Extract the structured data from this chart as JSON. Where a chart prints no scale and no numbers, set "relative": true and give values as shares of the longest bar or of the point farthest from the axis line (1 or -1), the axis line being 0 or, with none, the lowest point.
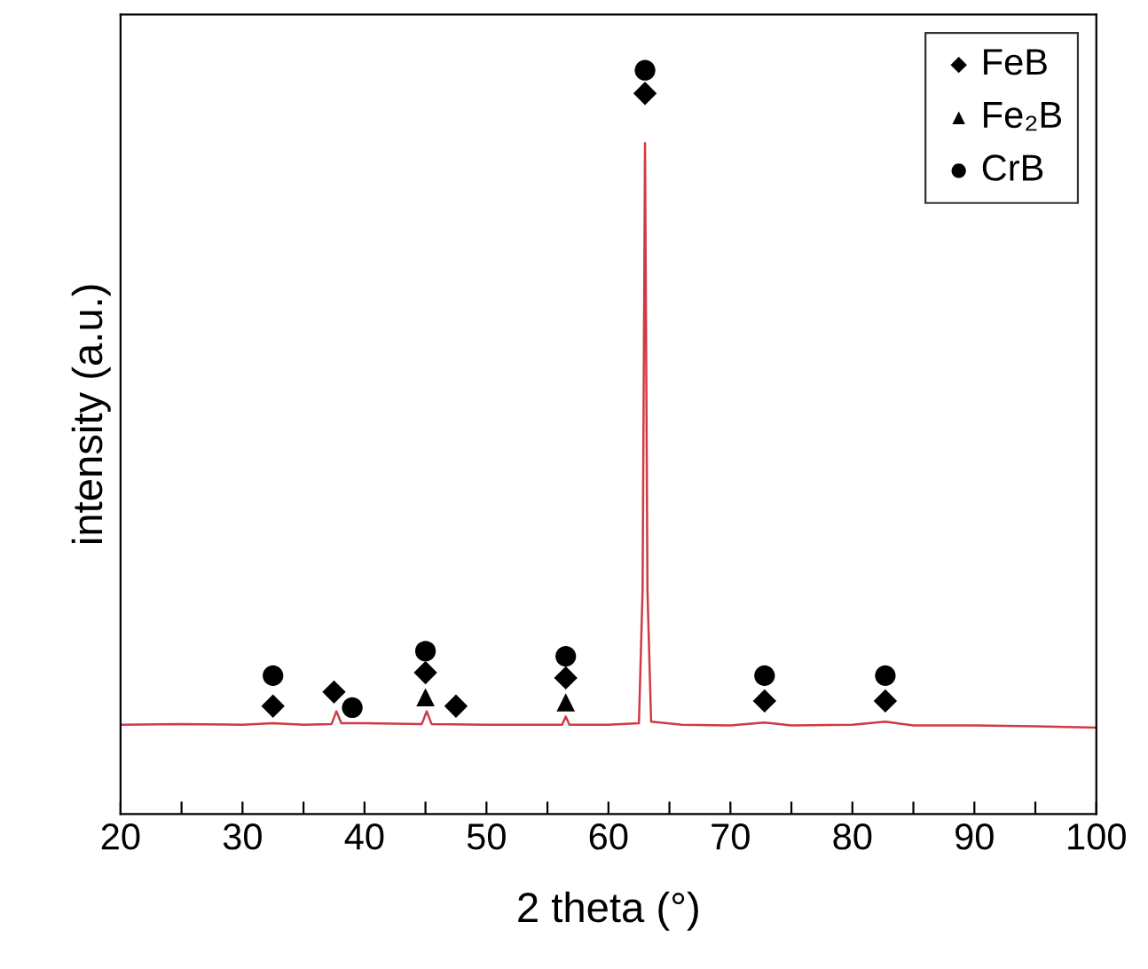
{
  "chart_data": {
    "type": "line",
    "xlabel": "2 theta (°)",
    "ylabel": "intensity (a.u.)",
    "relative": true,
    "tick_labels": "x",
    "legend": "top right",
    "grid": false,
    "xlim": [
      20,
      100
    ],
    "xticks": [
      20,
      {
        "value": 25,
        "label": null
      },
      30,
      {
        "value": 35,
        "label": null
      },
      40,
      {
        "value": 45,
        "label": null
      },
      50,
      {
        "value": 55,
        "label": null
      },
      60,
      {
        "value": 65,
        "label": null
      },
      70,
      {
        "value": 75,
        "label": null
      },
      80,
      {
        "value": 85,
        "label": null
      },
      90,
      {
        "value": 95,
        "label": null
      },
      100
    ],
    "series": [
      {
        "color": "#d03a44",
        "marker": "none",
        "x": [
          20,
          25,
          30,
          32.5,
          35,
          37.3,
          37.7,
          38.1,
          40,
          44.7,
          45.1,
          45.5,
          50,
          56.2,
          56.5,
          56.8,
          60,
          62.5,
          62.8,
          63.0,
          63.2,
          63.5,
          66,
          70,
          72.8,
          75,
          80,
          82.7,
          85,
          90,
          95,
          100
        ],
        "values": [
          0.12,
          0.121,
          0.12,
          0.122,
          0.12,
          0.121,
          0.138,
          0.122,
          0.122,
          0.121,
          0.138,
          0.121,
          0.12,
          0.12,
          0.131,
          0.12,
          0.12,
          0.122,
          0.3,
          0.902,
          0.3,
          0.124,
          0.12,
          0.119,
          0.123,
          0.119,
          0.12,
          0.124,
          0.119,
          0.119,
          0.118,
          0.116
        ]
      },
      {
        "type": "scatter",
        "name": "FeB",
        "color": "#000000",
        "marker": "diamond",
        "x": [
          32.5,
          37.5,
          45,
          47.5,
          56.5,
          63,
          72.8,
          82.7
        ],
        "values": [
          0.145,
          0.164,
          0.19,
          0.145,
          0.183,
          0.969,
          0.152,
          0.152
        ]
      },
      {
        "type": "scatter",
        "name": "Fe₂B",
        "color": "#000000",
        "marker": "triangle",
        "x": [
          45,
          56.5
        ],
        "values": [
          0.157,
          0.15
        ]
      },
      {
        "type": "scatter",
        "name": "CrB",
        "color": "#000000",
        "marker": "circle",
        "x": [
          32.5,
          39,
          45,
          56.5,
          63,
          72.8,
          82.7
        ],
        "values": [
          0.186,
          0.143,
          0.219,
          0.212,
          1.0,
          0.186,
          0.186
        ]
      }
    ]
  }
}
